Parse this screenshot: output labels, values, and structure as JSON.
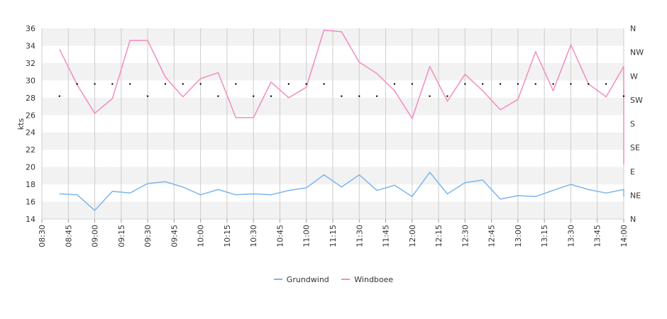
{
  "chart_data": {
    "type": "line",
    "ylabel": "kts",
    "ylim": [
      14,
      36
    ],
    "y_ticks": [
      "14",
      "16",
      "18",
      "20",
      "22",
      "24",
      "26",
      "28",
      "30",
      "32",
      "34",
      "36"
    ],
    "y2_ticks": [
      "N",
      "NE",
      "E",
      "SE",
      "S",
      "SW",
      "W",
      "NW",
      "N"
    ],
    "x_range": [
      "08:30",
      "14:00"
    ],
    "x_ticks": [
      "08:30",
      "08:45",
      "09:00",
      "09:15",
      "09:30",
      "09:45",
      "10:00",
      "10:15",
      "10:30",
      "10:45",
      "11:00",
      "11:15",
      "11:30",
      "11:45",
      "12:00",
      "12:15",
      "12:30",
      "12:45",
      "13:00",
      "13:15",
      "13:30",
      "13:45",
      "14:00"
    ],
    "grid": "alternating horizontal bands, vertical lines every 15 min",
    "legend_position": "bottom-center",
    "colors": {
      "grundwind": "#7cb5ec",
      "windboee": "#f28cc0",
      "direction": "#000000",
      "band": "#f2f2f2",
      "grid": "#cccccc"
    },
    "series": [
      {
        "name": "Grundwind",
        "x": [
          "08:40",
          "08:50",
          "09:00",
          "09:10",
          "09:20",
          "09:30",
          "09:40",
          "09:50",
          "10:00",
          "10:10",
          "10:20",
          "10:30",
          "10:40",
          "10:50",
          "11:00",
          "11:10",
          "11:20",
          "11:30",
          "11:40",
          "11:50",
          "12:00",
          "12:10",
          "12:20",
          "12:30",
          "12:40",
          "12:50",
          "13:00",
          "13:10",
          "13:20",
          "13:30",
          "13:40",
          "13:50",
          "14:00",
          "14:00"
        ],
        "values": [
          16.9,
          16.8,
          15.0,
          17.2,
          17.0,
          18.1,
          18.3,
          17.7,
          16.8,
          17.4,
          16.8,
          16.9,
          16.8,
          17.3,
          17.6,
          19.1,
          17.7,
          19.1,
          17.3,
          17.9,
          16.6,
          19.4,
          16.9,
          18.2,
          18.5,
          16.3,
          16.7,
          16.6,
          17.3,
          18.0,
          17.4,
          17.0,
          17.4,
          16.6
        ]
      },
      {
        "name": "Windboee",
        "x": [
          "08:40",
          "08:50",
          "09:00",
          "09:10",
          "09:20",
          "09:30",
          "09:40",
          "09:50",
          "10:00",
          "10:10",
          "10:20",
          "10:30",
          "10:40",
          "10:50",
          "11:00",
          "11:10",
          "11:20",
          "11:30",
          "11:40",
          "11:50",
          "12:00",
          "12:10",
          "12:20",
          "12:30",
          "12:40",
          "12:50",
          "13:00",
          "13:10",
          "13:20",
          "13:30",
          "13:40",
          "13:50",
          "14:00",
          "14:00"
        ],
        "values": [
          33.6,
          29.5,
          26.2,
          27.9,
          34.6,
          34.6,
          30.4,
          28.1,
          30.2,
          30.9,
          25.7,
          25.7,
          29.8,
          28.0,
          29.2,
          35.8,
          35.6,
          32.1,
          30.8,
          28.8,
          25.6,
          31.6,
          27.6,
          30.7,
          28.8,
          26.6,
          27.8,
          33.3,
          28.8,
          34.1,
          29.6,
          28.1,
          31.6,
          20.3
        ]
      },
      {
        "name": "Direction",
        "x": [
          "08:40",
          "08:50",
          "09:00",
          "09:10",
          "09:20",
          "09:30",
          "09:40",
          "09:50",
          "10:00",
          "10:10",
          "10:20",
          "10:30",
          "10:40",
          "10:50",
          "11:00",
          "11:10",
          "11:20",
          "11:30",
          "11:40",
          "11:50",
          "12:00",
          "12:10",
          "12:20",
          "12:30",
          "12:40",
          "12:50",
          "13:00",
          "13:10",
          "13:20",
          "13:30",
          "13:40",
          "13:50",
          "14:00"
        ],
        "values": [
          232,
          255,
          255,
          255,
          255,
          232,
          255,
          255,
          255,
          232,
          255,
          232,
          232,
          255,
          255,
          255,
          232,
          232,
          232,
          255,
          255,
          232,
          232,
          255,
          255,
          255,
          255,
          255,
          255,
          255,
          255,
          255,
          232
        ]
      }
    ]
  }
}
